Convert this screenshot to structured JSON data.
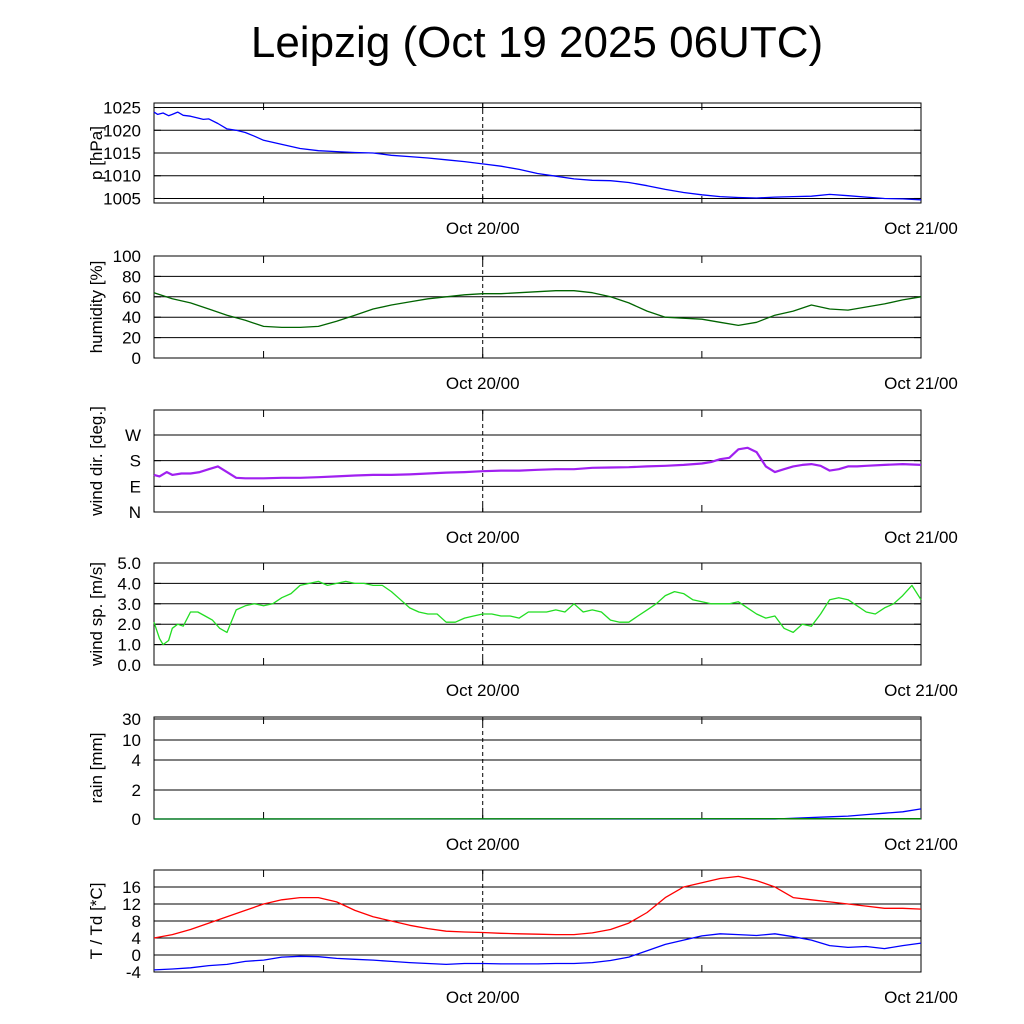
{
  "title": "Leipzig (Oct 19 2025 06UTC)",
  "time_axis": {
    "start": "Oct 19/06",
    "end": "Oct 21/00",
    "hours_total": 42,
    "tick_labels": [
      {
        "hour": 18,
        "label": "Oct 20/00"
      },
      {
        "hour": 42,
        "label": "Oct 21/00"
      }
    ],
    "minor_tick_hours": [
      6,
      18,
      30,
      42
    ],
    "dashed_line_hour": 18
  },
  "chart_data": [
    {
      "type": "line",
      "ylabel": "p [hPa]",
      "ylim": [
        1004,
        1026
      ],
      "yticks": [
        1005,
        1010,
        1015,
        1020,
        1025
      ],
      "ytick_labels": [
        "1005",
        "1010",
        "1015",
        "1020",
        "1025"
      ],
      "series": [
        {
          "name": "pressure",
          "color": "#0000ff",
          "x": [
            0,
            0.2,
            0.5,
            0.8,
            1,
            1.3,
            1.6,
            2,
            2.4,
            2.7,
            3,
            3.5,
            4,
            4.5,
            5,
            5.5,
            6,
            7,
            8,
            9,
            10,
            11,
            12,
            13,
            14,
            15,
            16,
            17,
            18,
            19,
            20,
            21,
            22,
            23,
            24,
            25,
            26,
            27,
            28,
            29,
            30,
            31,
            32,
            33,
            34,
            35,
            36,
            37,
            38,
            39,
            40,
            41,
            42
          ],
          "values": [
            1024,
            1023.5,
            1023.8,
            1023.2,
            1023.5,
            1024,
            1023.3,
            1023.1,
            1022.7,
            1022.4,
            1022.5,
            1021.5,
            1020.3,
            1020,
            1019.5,
            1018.7,
            1017.8,
            1016.9,
            1016,
            1015.5,
            1015.3,
            1015.1,
            1015.0,
            1014.5,
            1014.2,
            1013.9,
            1013.5,
            1013.1,
            1012.6,
            1012.1,
            1011.4,
            1010.5,
            1009.9,
            1009.3,
            1009.0,
            1008.9,
            1008.5,
            1007.8,
            1007.0,
            1006.3,
            1005.8,
            1005.4,
            1005.2,
            1005.1,
            1005.3,
            1005.4,
            1005.5,
            1005.9,
            1005.6,
            1005.3,
            1005.0,
            1004.9,
            1004.7
          ]
        }
      ]
    },
    {
      "type": "line",
      "ylabel": "humidity [%]",
      "ylim": [
        0,
        100
      ],
      "yticks": [
        0,
        20,
        40,
        60,
        80,
        100
      ],
      "ytick_labels": [
        "0",
        "20",
        "40",
        "60",
        "80",
        "100"
      ],
      "series": [
        {
          "name": "humidity",
          "color": "#006400",
          "x": [
            0,
            1,
            2,
            3,
            4,
            5,
            6,
            7,
            8,
            9,
            10,
            11,
            12,
            13,
            14,
            15,
            16,
            17,
            18,
            19,
            20,
            21,
            22,
            23,
            24,
            25,
            26,
            27,
            28,
            29,
            30,
            31,
            32,
            33,
            34,
            35,
            36,
            37,
            38,
            39,
            40,
            41,
            42
          ],
          "values": [
            64,
            58,
            54,
            48,
            42,
            37,
            31,
            30,
            30,
            31,
            36,
            42,
            48,
            52,
            55,
            58,
            60,
            62,
            63,
            63,
            64,
            65,
            66,
            66,
            64,
            60,
            54,
            46,
            40,
            39,
            38,
            35,
            32,
            35,
            42,
            46,
            52,
            48,
            47,
            50,
            53,
            57,
            60
          ]
        }
      ]
    },
    {
      "type": "line",
      "ylabel": "wind dir. [deg.]",
      "ylim": [
        0,
        360
      ],
      "yticks": [
        0,
        90,
        180,
        270
      ],
      "ytick_labels": [
        "N",
        "E",
        "S",
        "W"
      ],
      "series": [
        {
          "name": "wind direction",
          "color": "#a020f0",
          "x": [
            0,
            0.3,
            0.7,
            1,
            1.5,
            2,
            2.5,
            3,
            3.5,
            4,
            4.5,
            5,
            6,
            7,
            8,
            9,
            10,
            11,
            12,
            13,
            14,
            15,
            16,
            17,
            18,
            19,
            20,
            21,
            22,
            23,
            24,
            25,
            26,
            27,
            28,
            29,
            30,
            30.5,
            31,
            31.5,
            32,
            32.5,
            33,
            33.5,
            34,
            34.5,
            35,
            35.5,
            36,
            36.5,
            37,
            37.5,
            38,
            38.5,
            39,
            40,
            41,
            42
          ],
          "values": [
            130,
            125,
            140,
            130,
            135,
            135,
            140,
            150,
            160,
            140,
            120,
            118,
            118,
            120,
            120,
            122,
            125,
            128,
            130,
            130,
            132,
            135,
            138,
            140,
            143,
            145,
            145,
            148,
            150,
            150,
            155,
            156,
            157,
            160,
            162,
            165,
            170,
            175,
            185,
            190,
            220,
            225,
            210,
            160,
            140,
            150,
            160,
            165,
            168,
            162,
            145,
            150,
            160,
            160,
            162,
            165,
            168,
            165
          ]
        }
      ]
    },
    {
      "type": "line",
      "ylabel": "wind sp. [m/s]",
      "ylim": [
        0,
        5
      ],
      "yticks": [
        0,
        1,
        2,
        3,
        4,
        5
      ],
      "ytick_labels": [
        "0.0",
        "1.0",
        "2.0",
        "3.0",
        "4.0",
        "5.0"
      ],
      "series": [
        {
          "name": "wind speed",
          "color": "#22dd22",
          "x": [
            0,
            0.3,
            0.5,
            0.8,
            1,
            1.3,
            1.6,
            2,
            2.4,
            2.8,
            3.2,
            3.6,
            4,
            4.5,
            5,
            5.5,
            6,
            6.5,
            7,
            7.5,
            8,
            8.5,
            9,
            9.5,
            10,
            10.5,
            11,
            11.5,
            12,
            12.5,
            13,
            13.5,
            14,
            14.5,
            15,
            15.5,
            16,
            16.5,
            17,
            17.5,
            18,
            18.5,
            19,
            19.5,
            20,
            20.5,
            21,
            21.5,
            22,
            22.5,
            23,
            23.5,
            24,
            24.5,
            25,
            25.5,
            26,
            26.5,
            27,
            27.5,
            28,
            28.5,
            29,
            29.5,
            30,
            30.5,
            31,
            31.5,
            32,
            32.5,
            33,
            33.5,
            34,
            34.5,
            35,
            35.5,
            36,
            36.5,
            37,
            37.5,
            38,
            38.5,
            39,
            39.5,
            40,
            40.5,
            41,
            41.5,
            42
          ],
          "values": [
            2.1,
            1.3,
            1.0,
            1.2,
            1.8,
            2.0,
            1.9,
            2.6,
            2.6,
            2.4,
            2.2,
            1.8,
            1.6,
            2.7,
            2.9,
            3.0,
            2.9,
            3.0,
            3.3,
            3.5,
            3.9,
            4.0,
            4.1,
            3.9,
            4.0,
            4.1,
            4.0,
            4.0,
            3.9,
            3.9,
            3.6,
            3.2,
            2.8,
            2.6,
            2.5,
            2.5,
            2.1,
            2.1,
            2.3,
            2.4,
            2.5,
            2.5,
            2.4,
            2.4,
            2.3,
            2.6,
            2.6,
            2.6,
            2.7,
            2.6,
            3.0,
            2.6,
            2.7,
            2.6,
            2.2,
            2.1,
            2.1,
            2.4,
            2.7,
            3.0,
            3.4,
            3.6,
            3.5,
            3.2,
            3.1,
            3.0,
            3.0,
            3.0,
            3.1,
            2.8,
            2.5,
            2.3,
            2.4,
            1.8,
            1.6,
            2.0,
            1.9,
            2.5,
            3.2,
            3.3,
            3.2,
            2.9,
            2.6,
            2.5,
            2.8,
            3.0,
            3.4,
            3.9,
            3.2
          ]
        }
      ]
    },
    {
      "type": "line",
      "ylabel": "rain [mm]",
      "ylim": [
        0,
        30
      ],
      "yticks": [
        0,
        2,
        4,
        10,
        30
      ],
      "ytick_labels": [
        "0",
        "2",
        "4",
        "10",
        "30"
      ],
      "series": [
        {
          "name": "rain accumulated",
          "color": "#0000ff",
          "x": [
            0,
            34,
            35,
            36,
            37,
            38,
            39,
            40,
            41,
            42
          ],
          "values": [
            0,
            0,
            0.05,
            0.1,
            0.15,
            0.2,
            0.3,
            0.4,
            0.5,
            0.7
          ]
        },
        {
          "name": "rain rate",
          "color": "#008800",
          "x": [
            0,
            34,
            42
          ],
          "values": [
            0,
            0.02,
            0.02
          ]
        }
      ]
    },
    {
      "type": "line",
      "ylabel": "T / Td [*C]",
      "ylim": [
        -4,
        20
      ],
      "yticks": [
        -4,
        0,
        4,
        8,
        12,
        16
      ],
      "ytick_labels": [
        "-4",
        "0",
        "4",
        "8",
        "12",
        "16"
      ],
      "series": [
        {
          "name": "temperature",
          "color": "#ff0000",
          "x": [
            0,
            1,
            2,
            3,
            4,
            5,
            6,
            7,
            8,
            9,
            10,
            11,
            12,
            13,
            14,
            15,
            16,
            17,
            18,
            19,
            20,
            21,
            22,
            23,
            24,
            25,
            26,
            27,
            28,
            29,
            30,
            31,
            32,
            33,
            34,
            35,
            36,
            37,
            38,
            39,
            40,
            41,
            42
          ],
          "values": [
            4,
            4.8,
            6,
            7.5,
            9,
            10.5,
            12,
            13,
            13.5,
            13.5,
            12.5,
            10.5,
            9,
            8,
            7,
            6.2,
            5.6,
            5.4,
            5.3,
            5.1,
            5,
            4.9,
            4.8,
            4.8,
            5.2,
            6,
            7.5,
            10,
            13.5,
            16,
            17,
            18,
            18.5,
            17.5,
            16,
            13.5,
            13,
            12.5,
            12,
            11.5,
            11,
            11,
            10.8
          ]
        },
        {
          "name": "dewpoint",
          "color": "#0000ff",
          "x": [
            0,
            1,
            2,
            3,
            4,
            5,
            6,
            7,
            8,
            9,
            10,
            11,
            12,
            13,
            14,
            15,
            16,
            17,
            18,
            19,
            20,
            21,
            22,
            23,
            24,
            25,
            26,
            27,
            28,
            29,
            30,
            31,
            32,
            33,
            34,
            35,
            36,
            37,
            38,
            39,
            40,
            41,
            42
          ],
          "values": [
            -3.5,
            -3.3,
            -3,
            -2.5,
            -2.2,
            -1.5,
            -1.2,
            -0.5,
            -0.3,
            -0.4,
            -0.8,
            -1,
            -1.2,
            -1.5,
            -1.8,
            -2,
            -2.2,
            -2,
            -2,
            -2.1,
            -2.1,
            -2.1,
            -2,
            -2,
            -1.8,
            -1.3,
            -0.5,
            1,
            2.5,
            3.5,
            4.5,
            5,
            4.8,
            4.6,
            5,
            4.3,
            3.5,
            2.2,
            1.8,
            2,
            1.5,
            2.2,
            2.8
          ]
        }
      ]
    }
  ]
}
